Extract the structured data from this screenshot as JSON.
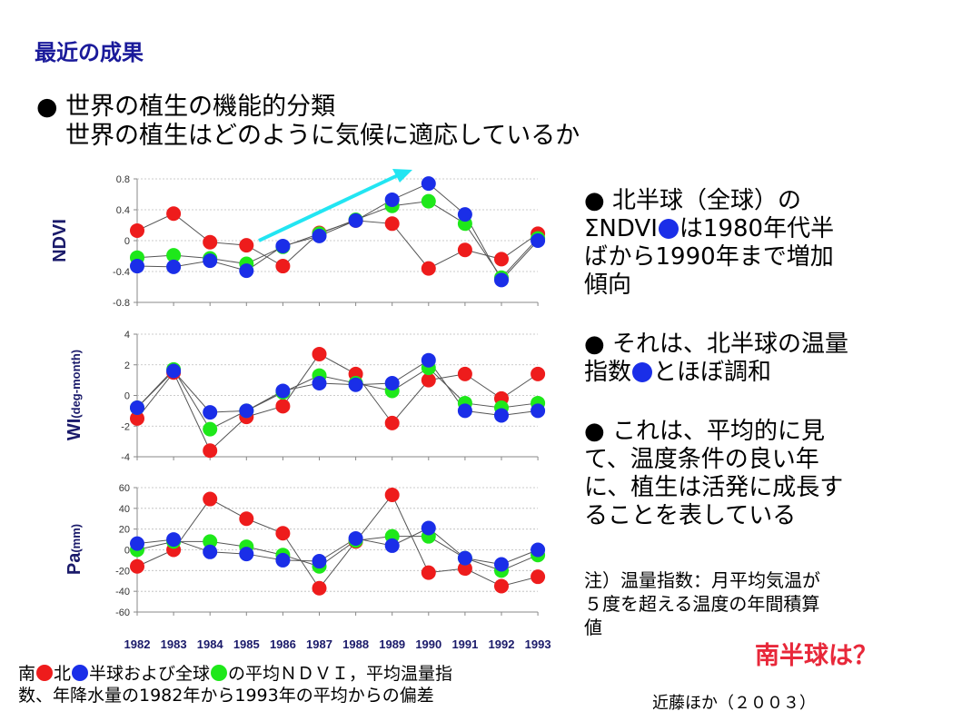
{
  "slide": {
    "title": "最近の成果",
    "bullet_main": "● 世界の植生の機能的分類",
    "bullet_sub": "世界の植生はどのように気候に適応しているか"
  },
  "right_panel": {
    "p1_l1": "● 北半球（全球）の",
    "p1_l2a": "ΣNDVI",
    "p1_l2b": "は1980年代半",
    "p1_l3": "ばから1990年まで増加",
    "p1_l4": "傾向",
    "p2_l1": "● それは、北半球の温量",
    "p2_l2a": "指数",
    "p2_l2b": "とほぼ調和",
    "p3_l1": "● これは、平均的に見",
    "p3_l2": "て、温度条件の良い年",
    "p3_l3": "に、植生は活発に成長す",
    "p3_l4": "ることを表している",
    "note_l1": "注）温量指数：月平均気温が",
    "note_l2": "５度を超える温度の年間積算",
    "note_l3": "値",
    "south_question": "南半球は？"
  },
  "caption": {
    "l1a": "南",
    "l1b": "北",
    "l1c": "半球および全球",
    "l1d": "の平均ＮＤＶＩ，平均温量指",
    "l2": "数、年降水量の1982年から1993年の平均からの偏差"
  },
  "citation": "近藤ほか（２００３）",
  "colors": {
    "south": "#ee1c1c",
    "north": "#1a2ee8",
    "global": "#1ee81a",
    "arrow": "#22e5f2",
    "title": "#1a1a9a",
    "question": "#e8283a"
  },
  "chart_data": [
    {
      "type": "line",
      "ylabel": "NDVI",
      "x": [
        "1982",
        "1983",
        "1984",
        "1985",
        "1986",
        "1987",
        "1988",
        "1989",
        "1990",
        "1991",
        "1992",
        "1993"
      ],
      "ylim": [
        -0.8,
        0.8
      ],
      "yticks": [
        "0.8",
        "0.4",
        "0",
        "-0.4",
        "-0.8"
      ],
      "yticks_values": [
        0.8,
        0.4,
        0,
        -0.4,
        -0.8
      ],
      "series": [
        {
          "color_key": "south",
          "values": [
            0.13,
            0.35,
            -0.02,
            -0.06,
            -0.33,
            0.1,
            0.26,
            0.22,
            -0.36,
            -0.12,
            -0.24,
            0.09
          ]
        },
        {
          "color_key": "global",
          "values": [
            -0.22,
            -0.19,
            -0.23,
            -0.3,
            -0.08,
            0.09,
            0.27,
            0.45,
            0.51,
            0.22,
            -0.48,
            0.03
          ]
        },
        {
          "color_key": "north",
          "values": [
            -0.33,
            -0.34,
            -0.26,
            -0.39,
            -0.07,
            0.06,
            0.26,
            0.53,
            0.74,
            0.34,
            -0.51,
            0.0
          ]
        }
      ]
    },
    {
      "type": "line",
      "ylabel": "WI",
      "ylabel_sub": "(deg-month)",
      "x": [
        "1982",
        "1983",
        "1984",
        "1985",
        "1986",
        "1987",
        "1988",
        "1989",
        "1990",
        "1991",
        "1992",
        "1993"
      ],
      "ylim": [
        -4,
        4
      ],
      "yticks": [
        "4",
        "2",
        "0",
        "-2",
        "-4"
      ],
      "yticks_values": [
        4,
        2,
        0,
        -2,
        -4
      ],
      "series": [
        {
          "color_key": "south",
          "values": [
            -1.5,
            1.5,
            -3.6,
            -1.4,
            -0.7,
            2.7,
            1.4,
            -1.8,
            1.0,
            1.4,
            -0.2,
            1.4
          ]
        },
        {
          "color_key": "global",
          "values": [
            -0.8,
            1.7,
            -2.2,
            -1.0,
            0.2,
            1.3,
            0.8,
            0.3,
            1.8,
            -0.5,
            -0.8,
            -0.5
          ]
        },
        {
          "color_key": "north",
          "values": [
            -0.8,
            1.6,
            -1.1,
            -1.0,
            0.3,
            0.8,
            0.7,
            0.8,
            2.3,
            -1.0,
            -1.3,
            -1.0
          ]
        }
      ]
    },
    {
      "type": "line",
      "ylabel": "Pa",
      "ylabel_sub": "(mm)",
      "x": [
        "1982",
        "1983",
        "1984",
        "1985",
        "1986",
        "1987",
        "1988",
        "1989",
        "1990",
        "1991",
        "1992",
        "1993"
      ],
      "ylim": [
        -60,
        60
      ],
      "yticks": [
        "60",
        "40",
        "20",
        "0",
        "-20",
        "-40",
        "-60"
      ],
      "yticks_values": [
        60,
        40,
        20,
        0,
        -20,
        -40,
        -60
      ],
      "xtick_labels": [
        "1982",
        "1983",
        "1984",
        "1985",
        "1986",
        "1987",
        "1988",
        "1989",
        "1990",
        "1991",
        "1992",
        "1993"
      ],
      "series": [
        {
          "color_key": "south",
          "values": [
            -16,
            0,
            49,
            30,
            16,
            -37,
            8,
            53,
            -22,
            -18,
            -35,
            -26
          ]
        },
        {
          "color_key": "global",
          "values": [
            0,
            8,
            8,
            3,
            -5,
            -16,
            9,
            13,
            13,
            -8,
            -20,
            -5
          ]
        },
        {
          "color_key": "north",
          "values": [
            6,
            10,
            -2,
            -4,
            -10,
            -11,
            11,
            4,
            21,
            -8,
            -14,
            0
          ]
        }
      ]
    }
  ]
}
